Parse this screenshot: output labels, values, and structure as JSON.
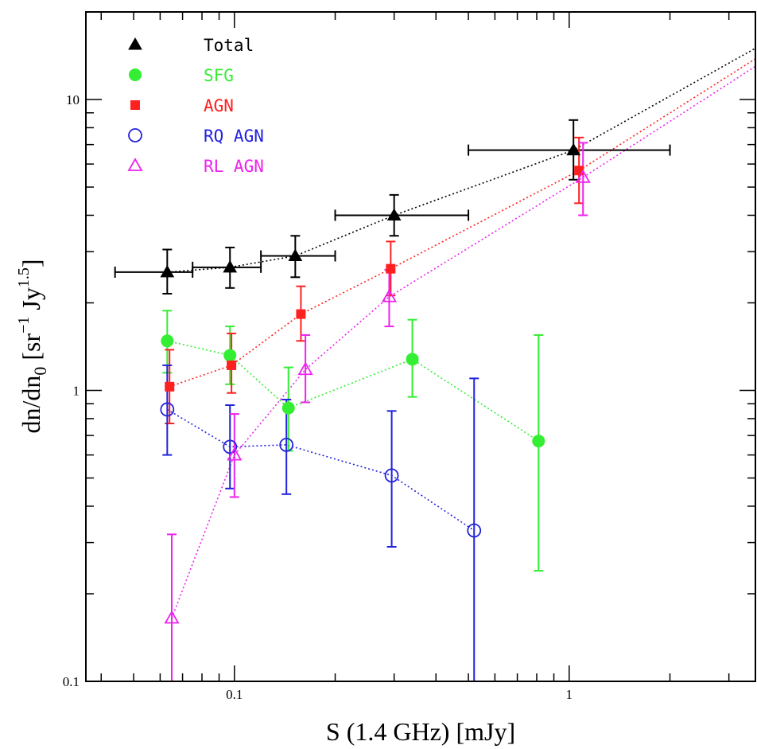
{
  "chart_data": {
    "type": "scatter",
    "xlabel": "S (1.4 GHz) [mJy]",
    "ylabel": {
      "main": "dn/dn",
      "sub": "0",
      "bracket_open": " [sr",
      "sup1": "−1",
      "mid": " Jy",
      "sup2": "1.5",
      "bracket_close": "]"
    },
    "x_scale": "log",
    "y_scale": "log",
    "xlim": [
      0.036,
      3.6
    ],
    "ylim": [
      0.1,
      20
    ],
    "x_ticks": [
      {
        "value": 0.1,
        "label": "0.1"
      },
      {
        "value": 1,
        "label": "1"
      }
    ],
    "y_ticks": [
      {
        "value": 0.1,
        "label": "0.1"
      },
      {
        "value": 1,
        "label": "1"
      },
      {
        "value": 10,
        "label": "10"
      }
    ],
    "legend_position": "top-left",
    "series": [
      {
        "name": "Total",
        "color": "#000000",
        "marker": "triangle-filled",
        "points": [
          {
            "x": 0.063,
            "y": 2.55,
            "y_lo": 2.15,
            "y_hi": 3.05,
            "x_lo": 0.044,
            "x_hi": 0.075
          },
          {
            "x": 0.097,
            "y": 2.65,
            "y_lo": 2.25,
            "y_hi": 3.1,
            "x_lo": 0.075,
            "x_hi": 0.12
          },
          {
            "x": 0.152,
            "y": 2.9,
            "y_lo": 2.45,
            "y_hi": 3.4,
            "x_lo": 0.12,
            "x_hi": 0.2
          },
          {
            "x": 0.3,
            "y": 4.0,
            "y_lo": 3.4,
            "y_hi": 4.7,
            "x_lo": 0.2,
            "x_hi": 0.5
          },
          {
            "x": 1.03,
            "y": 6.7,
            "y_lo": 5.3,
            "y_hi": 8.5,
            "x_lo": 0.5,
            "x_hi": 2.0
          }
        ],
        "fit": {
          "x": [
            0.063,
            0.097,
            0.152,
            0.3,
            1.03,
            3.6
          ],
          "y": [
            2.55,
            2.65,
            2.9,
            4.0,
            6.7,
            15.0
          ]
        }
      },
      {
        "name": "SFG",
        "color": "#33ee33",
        "marker": "circle-filled",
        "points": [
          {
            "x": 0.063,
            "y": 1.48,
            "y_lo": 1.15,
            "y_hi": 1.88
          },
          {
            "x": 0.097,
            "y": 1.32,
            "y_lo": 1.05,
            "y_hi": 1.66
          },
          {
            "x": 0.145,
            "y": 0.87,
            "y_lo": 0.62,
            "y_hi": 1.2
          },
          {
            "x": 0.34,
            "y": 1.28,
            "y_lo": 0.95,
            "y_hi": 1.75
          },
          {
            "x": 0.81,
            "y": 0.67,
            "y_lo": 0.24,
            "y_hi": 1.55
          }
        ],
        "fit": {
          "x": [
            0.063,
            0.097,
            0.145,
            0.34,
            0.81
          ],
          "y": [
            1.48,
            1.32,
            0.87,
            1.28,
            0.67
          ]
        }
      },
      {
        "name": "AGN",
        "color": "#ff2020",
        "marker": "square-filled",
        "points": [
          {
            "x": 0.064,
            "y": 1.03,
            "y_lo": 0.77,
            "y_hi": 1.38
          },
          {
            "x": 0.098,
            "y": 1.22,
            "y_lo": 0.98,
            "y_hi": 1.57
          },
          {
            "x": 0.158,
            "y": 1.83,
            "y_lo": 1.48,
            "y_hi": 2.28
          },
          {
            "x": 0.293,
            "y": 2.62,
            "y_lo": 2.12,
            "y_hi": 3.25
          },
          {
            "x": 1.07,
            "y": 5.7,
            "y_lo": 4.4,
            "y_hi": 7.4
          }
        ],
        "fit": {
          "x": [
            0.064,
            0.098,
            0.158,
            0.293,
            1.07,
            3.6
          ],
          "y": [
            1.03,
            1.22,
            1.83,
            2.62,
            5.7,
            13.8
          ]
        }
      },
      {
        "name": "RQ AGN",
        "color": "#2222dd",
        "marker": "circle-open",
        "points": [
          {
            "x": 0.063,
            "y": 0.86,
            "y_lo": 0.6,
            "y_hi": 1.22
          },
          {
            "x": 0.097,
            "y": 0.64,
            "y_lo": 0.46,
            "y_hi": 0.89
          },
          {
            "x": 0.143,
            "y": 0.65,
            "y_lo": 0.44,
            "y_hi": 0.93
          },
          {
            "x": 0.295,
            "y": 0.51,
            "y_lo": 0.29,
            "y_hi": 0.85
          },
          {
            "x": 0.52,
            "y": 0.33,
            "y_lo": 0.1,
            "y_hi": 1.1
          }
        ],
        "fit": {
          "x": [
            0.063,
            0.097,
            0.143,
            0.295,
            0.52
          ],
          "y": [
            0.86,
            0.64,
            0.65,
            0.51,
            0.33
          ]
        }
      },
      {
        "name": "RL AGN",
        "color": "#ee22ee",
        "marker": "triangle-open",
        "points": [
          {
            "x": 0.065,
            "y": 0.165,
            "y_lo": 0.1,
            "y_hi": 0.32
          },
          {
            "x": 0.1,
            "y": 0.6,
            "y_lo": 0.43,
            "y_hi": 0.83
          },
          {
            "x": 0.163,
            "y": 1.18,
            "y_lo": 0.91,
            "y_hi": 1.55
          },
          {
            "x": 0.29,
            "y": 2.1,
            "y_lo": 1.66,
            "y_hi": 2.6
          },
          {
            "x": 1.1,
            "y": 5.4,
            "y_lo": 4.0,
            "y_hi": 7.1
          }
        ],
        "fit": {
          "x": [
            0.065,
            0.1,
            0.163,
            0.29,
            1.1,
            3.6
          ],
          "y": [
            0.165,
            0.6,
            1.18,
            2.1,
            5.4,
            13.0
          ]
        }
      }
    ]
  }
}
